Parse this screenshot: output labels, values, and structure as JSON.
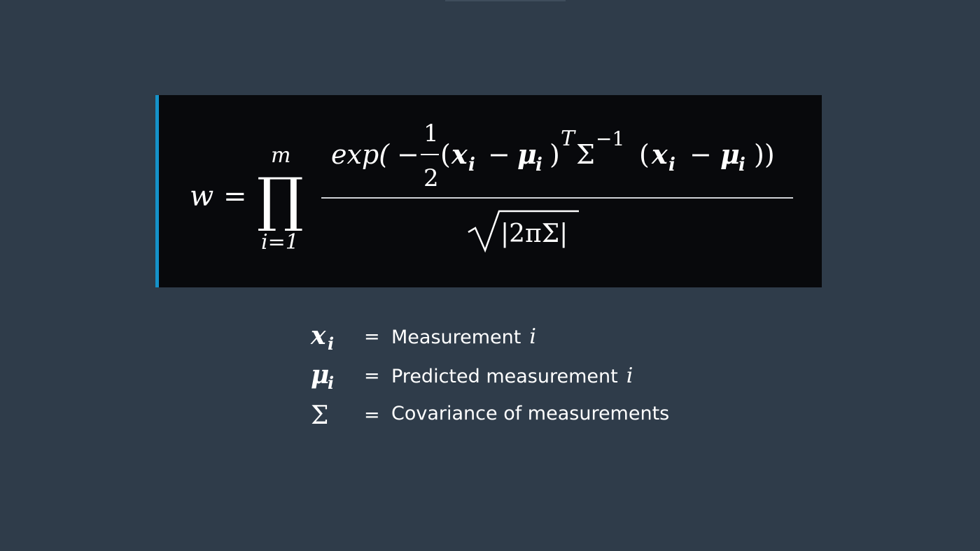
{
  "equation": {
    "lhs_var": "w",
    "equals": "=",
    "product_symbol": "∏",
    "product_upper": "m",
    "product_lower": "i=1",
    "numerator": {
      "exp_label": "exp(",
      "minus": "−",
      "frac_num": "1",
      "frac_den": "2",
      "open_paren": "(",
      "x_var": "x",
      "x_sub": "i",
      "minus2": "−",
      "mu_var": "μ",
      "mu_sub": "i",
      "close_paren": ")",
      "transpose": "T",
      "sigma": "Σ",
      "inverse": "−1",
      "open_paren2": "(",
      "x_var2": "x",
      "x_sub2": "i",
      "minus3": "−",
      "mu_var2": "μ",
      "mu_sub2": "i",
      "close_parens": "))"
    },
    "denominator": {
      "radical": "√",
      "abs_content": "|2πΣ|"
    }
  },
  "legend": {
    "items": [
      {
        "symbol": "x",
        "symbol_sub": "i",
        "equals": "=",
        "description": "Measurement",
        "var": "i"
      },
      {
        "symbol": "μ",
        "symbol_sub": "i",
        "equals": "=",
        "description": "Predicted measurement",
        "var": "i"
      },
      {
        "symbol": "Σ",
        "symbol_sub": "",
        "equals": "=",
        "description": "Covariance of measurements",
        "var": ""
      }
    ]
  },
  "colors": {
    "background": "#2f3c4a",
    "equation_box": "#08090c",
    "accent_bar": "#1592c9",
    "text": "#ffffff"
  }
}
